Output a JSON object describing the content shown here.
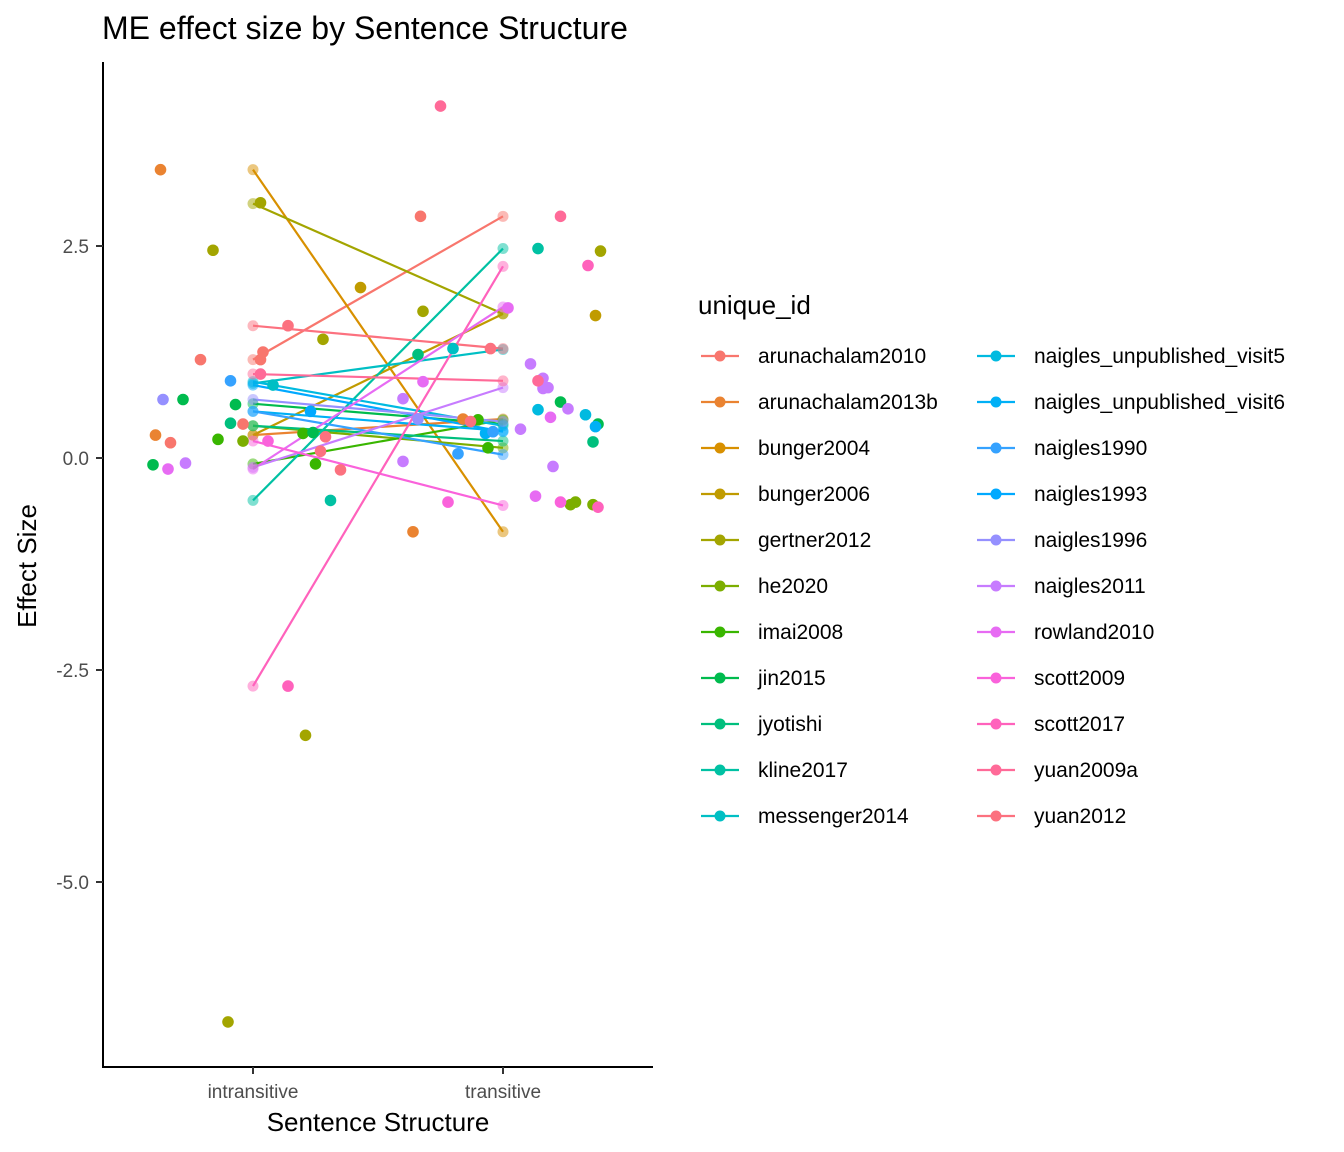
{
  "chart_data": {
    "type": "scatter",
    "title": "ME effect size by Sentence Structure",
    "xlabel": "Sentence Structure",
    "ylabel": "Effect Size",
    "categories": [
      "intransitive",
      "transitive"
    ],
    "ylim": [
      -7.2,
      4.6
    ],
    "yticks": [
      2.5,
      0.0,
      -2.5,
      -5.0
    ],
    "ytick_labels": [
      "2.5",
      "0.0",
      "-2.5",
      "-5.0"
    ],
    "legend_title": "unique_id",
    "legend_position": "right",
    "grid": false,
    "series": [
      {
        "name": "arunachalam2010",
        "color": "#F8766D",
        "means": [
          1.16,
          2.85
        ],
        "points": [
          [
            -0.21,
            1.16
          ],
          [
            0.03,
            1.16
          ],
          [
            -0.33,
            0.18
          ],
          [
            0.04,
            1.25
          ],
          [
            0.67,
            2.85
          ],
          [
            -0.04,
            0.4
          ]
        ]
      },
      {
        "name": "arunachalam2013b",
        "color": "#EA8331",
        "means": [
          0.27,
          0.46
        ],
        "points": [
          [
            -0.39,
            0.27
          ],
          [
            -0.37,
            3.4
          ],
          [
            0.84,
            0.46
          ],
          [
            0.64,
            -0.87
          ]
        ]
      },
      {
        "name": "bunger2004",
        "color": "#D89000",
        "means": [
          3.4,
          -0.87
        ],
        "points": []
      },
      {
        "name": "bunger2006",
        "color": "#C09B00",
        "means": [
          0.27,
          1.7
        ],
        "points": [
          [
            0.43,
            2.01
          ],
          [
            1.37,
            1.68
          ]
        ]
      },
      {
        "name": "gertner2012",
        "color": "#A3A500",
        "means": [
          3.0,
          1.7
        ],
        "points": [
          [
            0.03,
            3.01
          ],
          [
            -0.16,
            2.45
          ],
          [
            0.28,
            1.4
          ],
          [
            0.68,
            1.73
          ],
          [
            1.39,
            2.44
          ],
          [
            -0.1,
            -6.65
          ],
          [
            0.21,
            -3.27
          ]
        ]
      },
      {
        "name": "he2020",
        "color": "#7CAE00",
        "means": [
          0.38,
          0.12
        ],
        "points": [
          [
            -0.04,
            0.2
          ],
          [
            1.29,
            -0.52
          ],
          [
            1.36,
            -0.55
          ],
          [
            1.27,
            -0.55
          ]
        ]
      },
      {
        "name": "imai2008",
        "color": "#39B600",
        "means": [
          -0.07,
          0.45
        ],
        "points": [
          [
            -0.14,
            0.22
          ],
          [
            0.2,
            0.29
          ],
          [
            0.25,
            -0.07
          ],
          [
            0.9,
            0.45
          ],
          [
            0.94,
            0.12
          ]
        ]
      },
      {
        "name": "jin2015",
        "color": "#00BB4E",
        "means": [
          0.64,
          0.4
        ],
        "points": [
          [
            -0.4,
            -0.08
          ],
          [
            -0.28,
            0.69
          ],
          [
            -0.07,
            0.63
          ],
          [
            0.24,
            0.3
          ],
          [
            1.23,
            0.66
          ],
          [
            1.38,
            0.4
          ]
        ]
      },
      {
        "name": "jyotishi",
        "color": "#00BF7D",
        "means": [
          0.38,
          0.2
        ],
        "points": [
          [
            -0.09,
            0.41
          ],
          [
            0.66,
            1.22
          ],
          [
            1.36,
            0.19
          ]
        ]
      },
      {
        "name": "kline2017",
        "color": "#00C1A3",
        "means": [
          -0.5,
          2.47
        ],
        "points": [
          [
            0.31,
            -0.5
          ],
          [
            1.14,
            2.47
          ]
        ]
      },
      {
        "name": "messenger2014",
        "color": "#00BFC4",
        "means": [
          0.88,
          1.28
        ],
        "points": [
          [
            0.08,
            0.86
          ],
          [
            0.8,
            1.29
          ]
        ]
      },
      {
        "name": "naigles_unpublished_visit5",
        "color": "#00BAE0",
        "means": [
          0.9,
          0.38
        ],
        "points": [
          [
            1.33,
            0.51
          ],
          [
            1.14,
            0.57
          ]
        ]
      },
      {
        "name": "naigles_unpublished_visit6",
        "color": "#00B0F6",
        "means": [
          0.55,
          0.32
        ],
        "points": [
          [
            0.93,
            0.29
          ],
          [
            1.37,
            0.37
          ]
        ]
      },
      {
        "name": "naigles1990",
        "color": "#35A2FF",
        "means": [
          0.55,
          0.04
        ],
        "points": [
          [
            -0.09,
            0.91
          ],
          [
            0.82,
            0.05
          ],
          [
            0.96,
            0.31
          ]
        ]
      },
      {
        "name": "naigles1993",
        "color": "#00A9FF",
        "means": [
          0.86,
          0.31
        ],
        "points": [
          [
            0.23,
            0.55
          ]
        ]
      },
      {
        "name": "naigles1996",
        "color": "#9590FF",
        "means": [
          0.69,
          0.43
        ],
        "points": [
          [
            -0.36,
            0.69
          ],
          [
            0.66,
            0.46
          ]
        ]
      },
      {
        "name": "naigles2011",
        "color": "#C77CFF",
        "means": [
          -0.11,
          0.83
        ],
        "points": [
          [
            -0.27,
            -0.06
          ],
          [
            0.6,
            0.7
          ],
          [
            1.11,
            1.11
          ],
          [
            1.16,
            0.82
          ],
          [
            1.26,
            0.58
          ],
          [
            1.2,
            -0.1
          ],
          [
            1.18,
            0.83
          ],
          [
            1.16,
            0.94
          ],
          [
            1.07,
            0.34
          ],
          [
            0.6,
            -0.04
          ]
        ]
      },
      {
        "name": "rowland2010",
        "color": "#E76BF3",
        "means": [
          -0.13,
          1.78
        ],
        "points": [
          [
            -0.34,
            -0.13
          ],
          [
            0.68,
            0.9
          ],
          [
            1.02,
            1.77
          ],
          [
            1.13,
            -0.45
          ],
          [
            1.19,
            0.48
          ]
        ]
      },
      {
        "name": "scott2009",
        "color": "#FA62DB",
        "means": [
          0.2,
          -0.56
        ],
        "points": [
          [
            0.06,
            0.2
          ],
          [
            0.78,
            -0.52
          ],
          [
            1.23,
            -0.52
          ]
        ]
      },
      {
        "name": "scott2017",
        "color": "#FF62BC",
        "means": [
          -2.69,
          2.26
        ],
        "points": [
          [
            0.14,
            -2.69
          ],
          [
            1.34,
            2.27
          ],
          [
            1.38,
            -0.58
          ]
        ]
      },
      {
        "name": "yuan2009a",
        "color": "#FF6A98",
        "means": [
          0.99,
          0.91
        ],
        "points": [
          [
            0.03,
            0.99
          ],
          [
            0.75,
            4.15
          ],
          [
            1.14,
            0.91
          ],
          [
            1.23,
            2.85
          ]
        ]
      },
      {
        "name": "yuan2012",
        "color": "#FC717F",
        "means": [
          1.56,
          1.29
        ],
        "points": [
          [
            0.14,
            1.56
          ],
          [
            0.95,
            1.29
          ],
          [
            0.29,
            0.25
          ],
          [
            0.35,
            -0.14
          ],
          [
            0.27,
            0.08
          ],
          [
            0.87,
            0.43
          ]
        ]
      }
    ]
  }
}
